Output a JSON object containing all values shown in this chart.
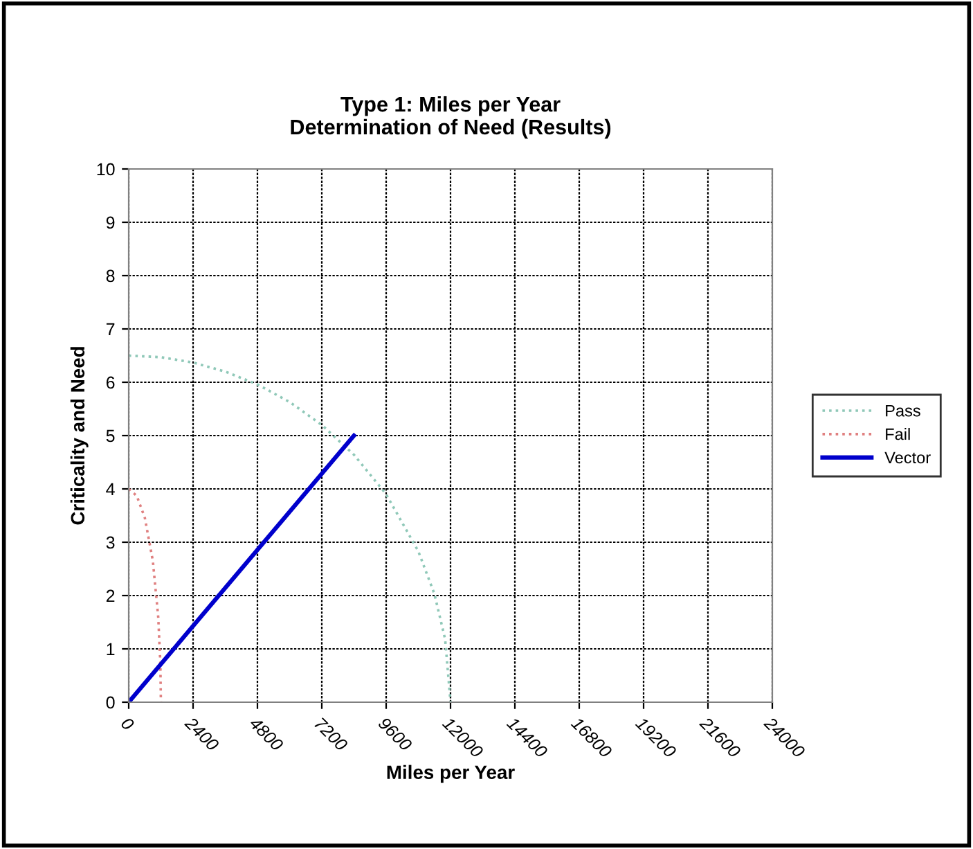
{
  "chart_data": {
    "type": "line",
    "title": "Type 1: Miles per Year\nDetermination of Need (Results)",
    "xlabel": "Miles per Year",
    "ylabel": "Criticality and Need",
    "series": [
      {
        "name": "Pass",
        "color": "#8fc8b8",
        "line_style": "dotted",
        "x": [
          0,
          1200,
          2400,
          3600,
          4800,
          6000,
          7200,
          8400,
          9600,
          10800,
          11400,
          11800,
          12000
        ],
        "values": [
          6.5,
          6.47,
          6.37,
          6.2,
          5.96,
          5.63,
          5.2,
          4.64,
          3.9,
          2.83,
          2.03,
          1.18,
          0
        ]
      },
      {
        "name": "Fail",
        "color": "#e08080",
        "line_style": "dotted",
        "x": [
          0,
          300,
          600,
          900,
          1100,
          1180,
          1200
        ],
        "values": [
          4,
          3.87,
          3.46,
          2.65,
          1.6,
          0.73,
          0
        ]
      },
      {
        "name": "Vector",
        "color": "#0000cc",
        "line_style": "solid",
        "x": [
          0,
          8400
        ],
        "values": [
          0,
          5
        ]
      }
    ],
    "xlim": [
      0,
      24000
    ],
    "xticks": [
      0,
      2400,
      4800,
      7200,
      9600,
      12000,
      14400,
      16800,
      19200,
      21600,
      24000
    ],
    "ylim": [
      0,
      10
    ],
    "yticks": [
      0,
      1,
      2,
      3,
      4,
      5,
      6,
      7,
      8,
      9,
      10
    ],
    "grid": true,
    "legend": "right"
  }
}
